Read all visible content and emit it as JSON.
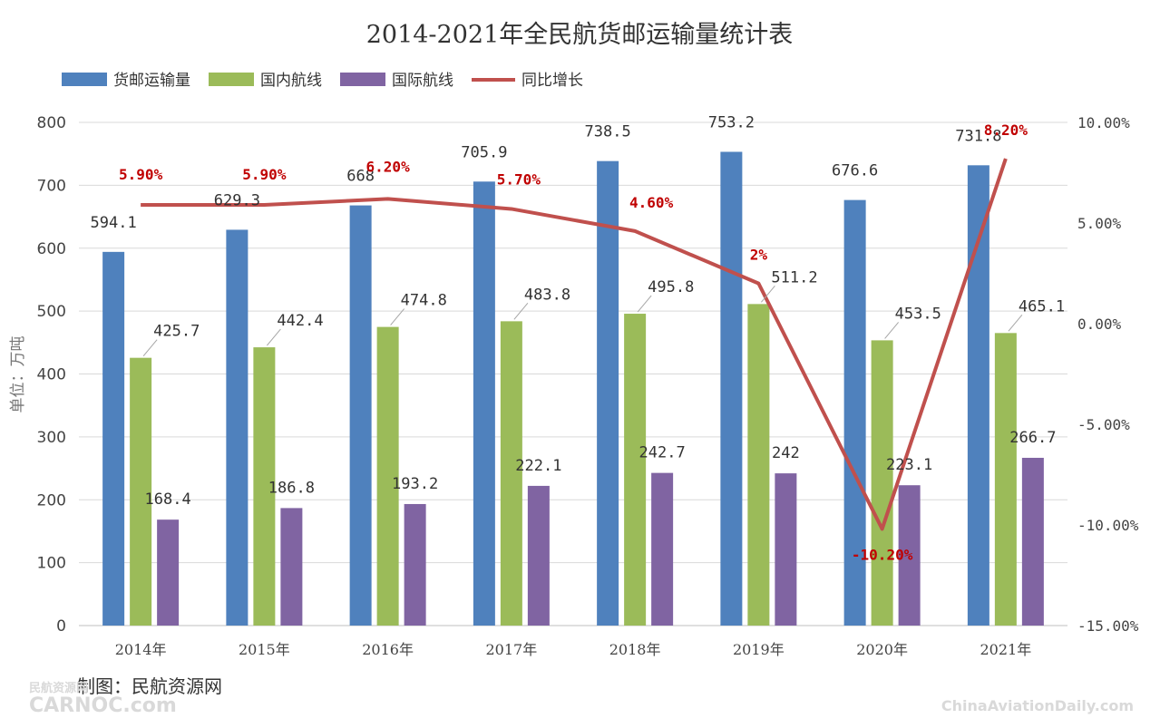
{
  "chart_data": {
    "type": "bar",
    "title": "2014-2021年全民航货邮运输量统计表",
    "ylabel": "单位：万吨",
    "categories": [
      "2014年",
      "2015年",
      "2016年",
      "2017年",
      "2018年",
      "2019年",
      "2020年",
      "2021年"
    ],
    "series": [
      {
        "name": "货邮运输量",
        "type": "bar",
        "color": "#4f81bd",
        "values": [
          594.1,
          629.3,
          668,
          705.9,
          738.5,
          753.2,
          676.6,
          731.8
        ],
        "labels": [
          "594.1",
          "629.3",
          "668",
          "705.9",
          "738.5",
          "753.2",
          "676.6",
          "731.8"
        ]
      },
      {
        "name": "国内航线",
        "type": "bar",
        "color": "#9bbb59",
        "values": [
          425.7,
          442.4,
          474.8,
          483.8,
          495.8,
          511.2,
          453.5,
          465.1
        ],
        "labels": [
          "425.7",
          "442.4",
          "474.8",
          "483.8",
          "495.8",
          "511.2",
          "453.5",
          "465.1"
        ]
      },
      {
        "name": "国际航线",
        "type": "bar",
        "color": "#8064a2",
        "values": [
          168.4,
          186.8,
          193.2,
          222.1,
          242.7,
          242,
          223.1,
          266.7
        ],
        "labels": [
          "168.4",
          "186.8",
          "193.2",
          "222.1",
          "242.7",
          "242",
          "223.1",
          "266.7"
        ]
      },
      {
        "name": "同比增长",
        "type": "line",
        "axis": "right",
        "color": "#c0504d",
        "values": [
          5.9,
          5.9,
          6.2,
          5.7,
          4.6,
          2,
          -10.2,
          8.2
        ],
        "labels": [
          "5.90%",
          "5.90%",
          "6.20%",
          "5.70%",
          "4.60%",
          "2%",
          "-10.20%",
          "8.20%"
        ]
      }
    ],
    "y_left": {
      "min": 0,
      "max": 800,
      "ticks": [
        "0",
        "100",
        "200",
        "300",
        "400",
        "500",
        "600",
        "700",
        "800"
      ]
    },
    "y_right": {
      "min": -15,
      "max": 10,
      "ticks": [
        "-15.00%",
        "-10.00%",
        "-5.00%",
        "0.00%",
        "5.00%",
        "10.00%"
      ]
    },
    "grid": true,
    "legend": "top-left"
  },
  "credit": "制图：民航资源网",
  "watermark_left": "CARNOC.com",
  "watermark_left_small": "民航资源网",
  "watermark_right": "ChinaAviationDaily.com"
}
